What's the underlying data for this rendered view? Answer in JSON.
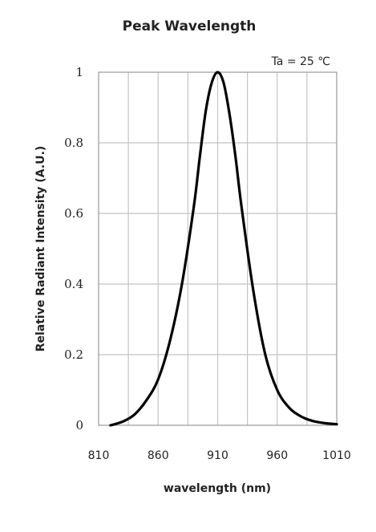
{
  "chart_data": {
    "type": "line",
    "title": "Peak Wavelength",
    "xlabel": "wavelength (nm)",
    "ylabel": "Relative Radiant Intensity (A.U.)",
    "annotation": "Ta = 25 ℃",
    "xlim": [
      810,
      1010
    ],
    "ylim": [
      0,
      1
    ],
    "x_ticks": [
      "810",
      "860",
      "910",
      "960",
      "1010"
    ],
    "y_ticks": [
      "0",
      "0.2",
      "0.4",
      "0.6",
      "0.8",
      "1"
    ],
    "grid": true,
    "series": [
      {
        "x": [
          820,
          830,
          840,
          850,
          860,
          870,
          880,
          890,
          895,
          900,
          905,
          910,
          915,
          920,
          925,
          930,
          940,
          950,
          960,
          970,
          980,
          990,
          1000,
          1010
        ],
        "y": [
          0.0,
          0.01,
          0.03,
          0.07,
          0.13,
          0.24,
          0.4,
          0.62,
          0.76,
          0.89,
          0.97,
          1.0,
          0.97,
          0.88,
          0.76,
          0.62,
          0.38,
          0.2,
          0.1,
          0.05,
          0.025,
          0.012,
          0.006,
          0.003
        ]
      }
    ]
  }
}
